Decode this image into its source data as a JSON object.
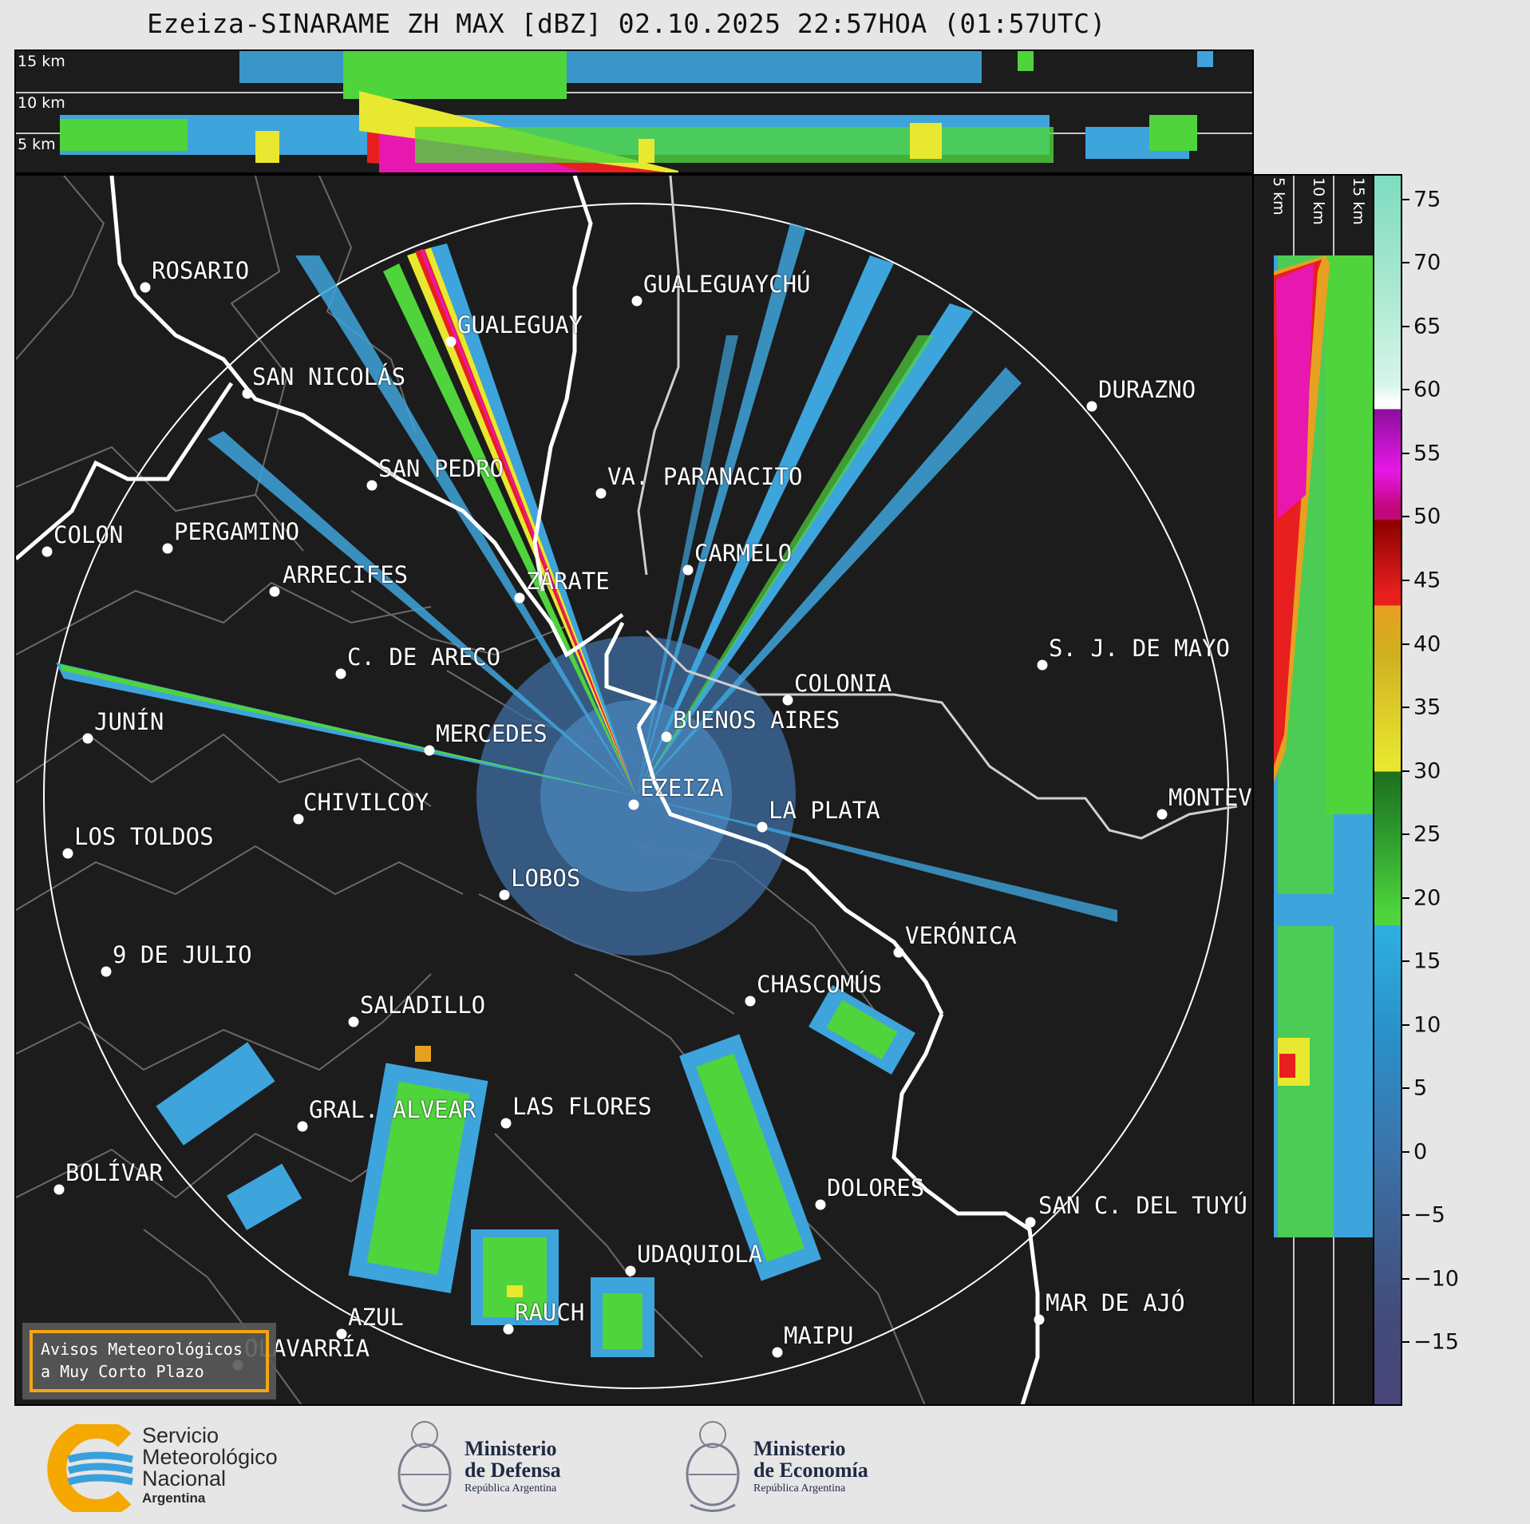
{
  "title": "Ezeiza-SINARAME ZH MAX [dBZ] 02.10.2025 22:57HOA (01:57UTC)",
  "top_panel": {
    "km_labels": [
      "15 km",
      "10 km",
      "5 km"
    ]
  },
  "side_panel": {
    "km_labels": [
      "5 km",
      "10 km",
      "15 km"
    ]
  },
  "cities": [
    {
      "name": "ROSARIO"
    },
    {
      "name": "GUALEGUAYCHÚ"
    },
    {
      "name": "GUALEGUAY"
    },
    {
      "name": "SAN NICOLÁS"
    },
    {
      "name": "DURAZNO"
    },
    {
      "name": "SAN PEDRO"
    },
    {
      "name": "VA. PARANACITO"
    },
    {
      "name": "COLON"
    },
    {
      "name": "PERGAMINO"
    },
    {
      "name": "CARMELO"
    },
    {
      "name": "ARRECIFES"
    },
    {
      "name": "ZÁRATE"
    },
    {
      "name": "S. J. DE MAYO"
    },
    {
      "name": "C. DE ARECO"
    },
    {
      "name": "COLONIA"
    },
    {
      "name": "JUNÍN"
    },
    {
      "name": "BUENOS AIRES"
    },
    {
      "name": "MERCEDES"
    },
    {
      "name": "EZEIZA"
    },
    {
      "name": "MONTEV"
    },
    {
      "name": "CHIVILCOY"
    },
    {
      "name": "LA PLATA"
    },
    {
      "name": "LOS TOLDOS"
    },
    {
      "name": "LOBOS"
    },
    {
      "name": "VERÓNICA"
    },
    {
      "name": "9 DE JULIO"
    },
    {
      "name": "CHASCOMÚS"
    },
    {
      "name": "SALADILLO"
    },
    {
      "name": "GRAL. ALVEAR"
    },
    {
      "name": "LAS FLORES"
    },
    {
      "name": "BOLÍVAR"
    },
    {
      "name": "DOLORES"
    },
    {
      "name": "SAN C. DEL TUYÚ"
    },
    {
      "name": "UDAQUIOLA"
    },
    {
      "name": "MAR DE AJÓ"
    },
    {
      "name": "AZUL"
    },
    {
      "name": "RAUCH"
    },
    {
      "name": "MAIPU"
    },
    {
      "name": "OLAVARRÍA"
    }
  ],
  "colorbar": {
    "unit": "dBZ",
    "ticks": [
      "75",
      "70",
      "65",
      "60",
      "55",
      "50",
      "45",
      "40",
      "35",
      "30",
      "25",
      "20",
      "15",
      "10",
      "5",
      "0",
      "−5",
      "−10",
      "−15"
    ],
    "range": [
      -20,
      77
    ]
  },
  "notice": {
    "line1": "Avisos Meteorológicos",
    "line2": "a Muy Corto Plazo"
  },
  "logos": {
    "smn": {
      "line1": "Servicio",
      "line2": "Meteorológico",
      "line3": "Nacional",
      "line4": "Argentina"
    },
    "defensa": {
      "line1": "Ministerio",
      "line2": "de Defensa",
      "line3": "República Argentina"
    },
    "economia": {
      "line1": "Ministerio",
      "line2": "de Economía",
      "line3": "República Argentina"
    }
  }
}
